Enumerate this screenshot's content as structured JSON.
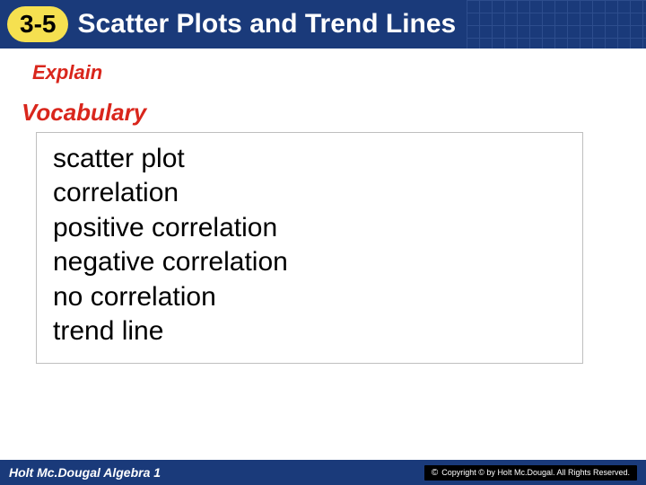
{
  "header": {
    "lesson_number": "3-5",
    "title": "Scatter Plots and Trend Lines",
    "bg_color": "#1a3a7a",
    "badge_bg": "#f5e050",
    "title_color": "#ffffff",
    "title_fontsize": 30,
    "badge_fontsize": 28
  },
  "subhead": {
    "text": "Explain",
    "color": "#d9261c",
    "fontsize": 22
  },
  "vocab_head": {
    "text": "Vocabulary",
    "color": "#d9261c",
    "fontsize": 26
  },
  "vocab_box": {
    "border_color": "#bfbfbf",
    "bg_color": "#ffffff",
    "item_color": "#000000",
    "item_fontsize": 30,
    "items": [
      "scatter plot",
      "correlation",
      "positive correlation",
      "negative correlation",
      "no correlation",
      "trend line"
    ]
  },
  "footer": {
    "left_text": "Holt Mc.Dougal Algebra 1",
    "bg_color": "#1a3a7a",
    "copyright": "Copyright © by Holt Mc.Dougal. All Rights Reserved."
  }
}
